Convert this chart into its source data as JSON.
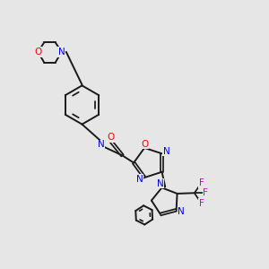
{
  "background_color": "#e6e6e6",
  "bond_color": "#1a1a1a",
  "atom_colors": {
    "O": "#ff0000",
    "N": "#0000ee",
    "F": "#cc00cc",
    "H": "#4a9a9a",
    "C": "#1a1a1a"
  },
  "figsize": [
    3.0,
    3.0
  ],
  "dpi": 100
}
